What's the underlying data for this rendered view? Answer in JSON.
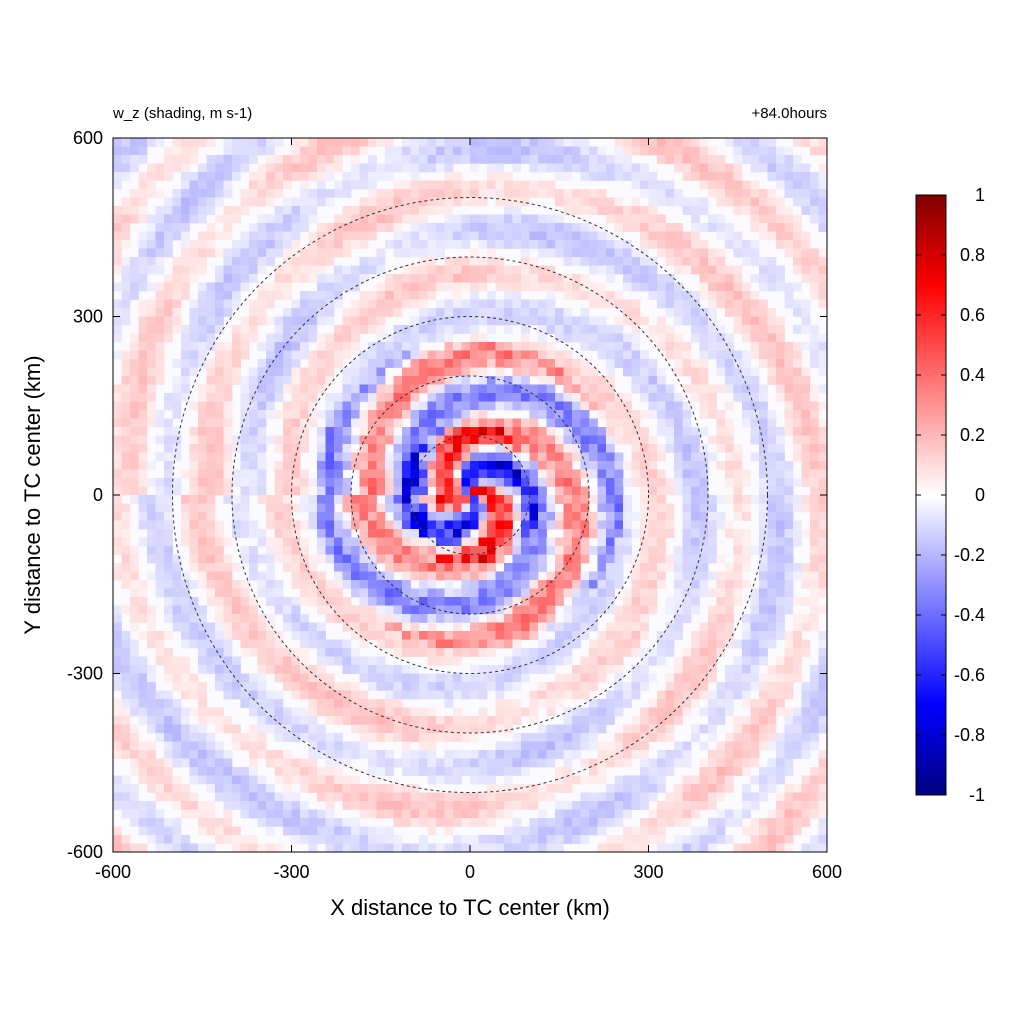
{
  "chart_data": {
    "type": "heatmap",
    "title_left": "w_z (shading, m s-1)",
    "title_right": "+84.0hours",
    "xlabel": "X distance to TC center (km)",
    "ylabel": "Y distance to TC center (km)",
    "xlim": [
      -600,
      600
    ],
    "ylim": [
      -600,
      600
    ],
    "x_ticks": [
      -600,
      -300,
      0,
      300,
      600
    ],
    "y_ticks": [
      -600,
      -300,
      0,
      300,
      600
    ],
    "x_tick_labels": [
      "-600",
      "-300",
      "0",
      "300",
      "600"
    ],
    "y_tick_labels": [
      "-600",
      "-300",
      "0",
      "300",
      "600"
    ],
    "range_rings_km": [
      100,
      200,
      300,
      400,
      500
    ],
    "colorbar": {
      "min": -1,
      "max": 1,
      "ticks": [
        1,
        0.8,
        0.6,
        0.4,
        0.2,
        0,
        -0.2,
        -0.4,
        -0.6,
        -0.8,
        -1
      ],
      "tick_labels": [
        "1",
        "0.8",
        "0.6",
        "0.4",
        "0.2",
        "0",
        "-0.2",
        "-0.4",
        "-0.6",
        "-0.8",
        "-1"
      ],
      "colors": [
        "#00007f",
        "#0000ff",
        "#ffffff",
        "#ff0000",
        "#7f0000"
      ]
    },
    "grid": false
  }
}
